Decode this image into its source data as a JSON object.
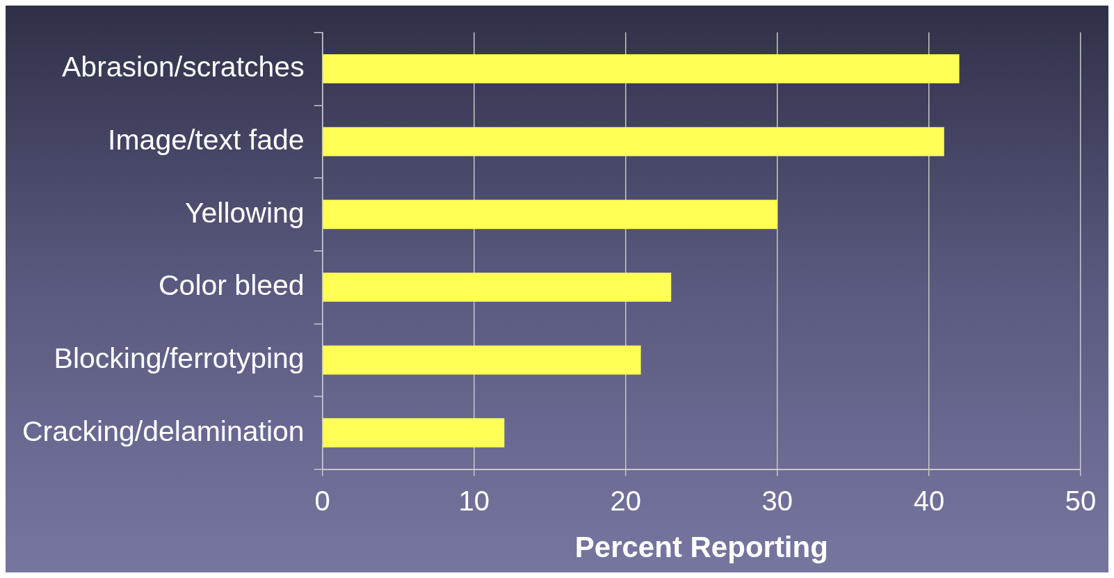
{
  "chart_data": {
    "type": "bar",
    "orientation": "horizontal",
    "xlabel": "Percent Reporting",
    "categories": [
      "Abrasion/scratches",
      "Image/text fade",
      "Yellowing",
      "Color bleed",
      "Blocking/ferrotyping",
      "Cracking/delamination"
    ],
    "values": [
      42,
      41,
      30,
      23,
      21,
      12
    ],
    "color": "#ffff55",
    "xlim": [
      0,
      50
    ],
    "xticks": [
      0,
      10,
      20,
      30,
      40,
      50
    ],
    "grid": "x",
    "legend": false
  }
}
